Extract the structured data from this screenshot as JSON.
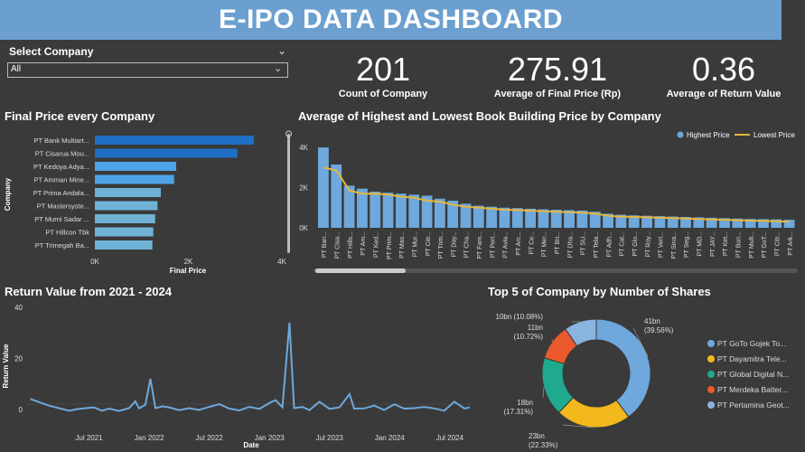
{
  "header": {
    "title": "E-IPO DATA DASHBOARD"
  },
  "slicer": {
    "title": "Select Company",
    "value": "All"
  },
  "kpis": [
    {
      "value": "201",
      "label": "Count of Company"
    },
    {
      "value": "275.91",
      "label": "Average of  Final Price (Rp)"
    },
    {
      "value": "0.36",
      "label": "Average of Return Value"
    }
  ],
  "colors": {
    "title_bar": "#6b9fcf",
    "bar_dark": "#1f6fc4",
    "bar_light": "#4da3e8",
    "highest": "#6ea8dc",
    "lowest": "#e6b63c"
  },
  "chart_data": [
    {
      "id": "final-price",
      "type": "bar",
      "orientation": "horizontal",
      "title": "Final Price every Company",
      "xlabel": "Final Price",
      "ylabel": "Company",
      "xlim": [
        0,
        4000
      ],
      "xticks": [
        "0K",
        "2K",
        "4K"
      ],
      "categories": [
        "PT Bank Multiart...",
        "PT Cisarua Mou...",
        "PT Kedoya Adya...",
        "PT Amman Mine...",
        "PT Prima Andala...",
        "PT Mastersyste...",
        "PT Murni Sadar ...",
        "PT Hillcon Tbk",
        "PT Trimegah Ba..."
      ],
      "values": [
        3400,
        3050,
        1740,
        1695,
        1410,
        1340,
        1290,
        1250,
        1230
      ]
    },
    {
      "id": "book-building",
      "type": "bar",
      "title": "Average of Highest and Lowest Book Building Price by Company",
      "ylim": [
        0,
        4500
      ],
      "yticks": [
        "0K",
        "2K",
        "4K"
      ],
      "categories": [
        "PT Ban...",
        "PT Cisa...",
        "PT Hills...",
        "PT Am...",
        "PT Ked...",
        "PT Prim...",
        "PT Mas...",
        "PT Mur...",
        "PT Citr...",
        "PT Trim...",
        "PT Day...",
        "PT Cha...",
        "PT Fam...",
        "PT Pert...",
        "PT Avia...",
        "PT Arc...",
        "PT Ce...",
        "PT Mer...",
        "PT Bri...",
        "PT Dha...",
        "PT SU...",
        "PT Tela...",
        "PT Adh...",
        "PT Cat...",
        "PT Glo...",
        "PT Roy...",
        "PT Vert...",
        "PT Sina...",
        "PT Seg...",
        "PT MD...",
        "PT JAY...",
        "PT Ket...",
        "PT Bun...",
        "PT Mult...",
        "PT GoT...",
        "PT Citr...",
        "PT Ark..."
      ],
      "series": [
        {
          "name": "Highest Price",
          "values": [
            4000,
            3150,
            2100,
            1950,
            1800,
            1750,
            1700,
            1650,
            1600,
            1450,
            1350,
            1200,
            1100,
            1050,
            1000,
            980,
            950,
            920,
            900,
            880,
            860,
            800,
            700,
            650,
            620,
            600,
            580,
            560,
            540,
            520,
            500,
            480,
            460,
            440,
            430,
            420,
            400
          ]
        },
        {
          "name": "Lowest Price",
          "values": [
            3000,
            2850,
            1850,
            1700,
            1700,
            1650,
            1550,
            1500,
            1350,
            1300,
            1150,
            1050,
            1000,
            950,
            900,
            880,
            850,
            820,
            800,
            780,
            760,
            700,
            600,
            560,
            540,
            520,
            500,
            480,
            460,
            440,
            420,
            400,
            380,
            360,
            340,
            330,
            300
          ]
        }
      ]
    },
    {
      "id": "return-value",
      "type": "line",
      "title": "Return Value from 2021 - 2024",
      "xlabel": "Date",
      "ylabel": "Return Value",
      "ylim": [
        -5,
        40
      ],
      "yticks": [
        "0",
        "20",
        "40"
      ],
      "xticks": [
        "Jul 2021",
        "Jan 2022",
        "Jul 2022",
        "Jan 2023",
        "Jul 2023",
        "Jan 2024",
        "Jul 2024"
      ],
      "x_range": [
        "2021-01",
        "2024-09"
      ],
      "series": [
        {
          "name": "Return Value",
          "points": [
            [
              "2021-01-05",
              4.1
            ],
            [
              "2021-03-01",
              1.5
            ],
            [
              "2021-05-01",
              -0.5
            ],
            [
              "2021-06-01",
              0.2
            ],
            [
              "2021-07-15",
              0.8
            ],
            [
              "2021-08-10",
              -0.5
            ],
            [
              "2021-09-01",
              0.3
            ],
            [
              "2021-10-01",
              -0.6
            ],
            [
              "2021-11-01",
              0.5
            ],
            [
              "2021-11-20",
              3.2
            ],
            [
              "2021-12-01",
              0.4
            ],
            [
              "2021-12-20",
              1.8
            ],
            [
              "2022-01-05",
              12.0
            ],
            [
              "2022-01-20",
              0.5
            ],
            [
              "2022-02-10",
              1.2
            ],
            [
              "2022-03-01",
              0.8
            ],
            [
              "2022-04-01",
              -0.3
            ],
            [
              "2022-05-01",
              0.5
            ],
            [
              "2022-06-01",
              -0.2
            ],
            [
              "2022-07-01",
              1.0
            ],
            [
              "2022-08-01",
              2.1
            ],
            [
              "2022-09-01",
              0.3
            ],
            [
              "2022-10-01",
              -0.4
            ],
            [
              "2022-11-01",
              1.0
            ],
            [
              "2022-12-01",
              0.2
            ],
            [
              "2023-01-05",
              2.8
            ],
            [
              "2023-01-20",
              3.6
            ],
            [
              "2023-02-10",
              0.8
            ],
            [
              "2023-03-01",
              34.0
            ],
            [
              "2023-03-15",
              0.5
            ],
            [
              "2023-04-10",
              1.0
            ],
            [
              "2023-05-01",
              -0.3
            ],
            [
              "2023-06-01",
              3.0
            ],
            [
              "2023-07-01",
              0.2
            ],
            [
              "2023-08-01",
              0.8
            ],
            [
              "2023-09-01",
              6.0
            ],
            [
              "2023-09-15",
              0.3
            ],
            [
              "2023-10-15",
              0.4
            ],
            [
              "2023-11-15",
              1.5
            ],
            [
              "2023-12-15",
              -0.2
            ],
            [
              "2024-01-15",
              2.0
            ],
            [
              "2024-02-15",
              0.3
            ],
            [
              "2024-03-15",
              0.5
            ],
            [
              "2024-04-15",
              1.0
            ],
            [
              "2024-05-15",
              0.4
            ],
            [
              "2024-06-15",
              -0.5
            ],
            [
              "2024-07-15",
              3.0
            ],
            [
              "2024-08-15",
              0.4
            ],
            [
              "2024-09-01",
              0.8
            ]
          ]
        }
      ]
    },
    {
      "id": "top5-shares",
      "type": "pie",
      "donut": true,
      "title": "Top 5 of Company by Number of Shares",
      "legend_position": "right",
      "slices": [
        {
          "name": "PT GoTo Gojek To...",
          "value": 41,
          "label": "41bn",
          "pct": "(39.56%)",
          "color": "#6ea8dc"
        },
        {
          "name": "PT Dayamitra Tele...",
          "value": 23,
          "label": "23bn",
          "pct": "(22.33%)",
          "color": "#f2b81c"
        },
        {
          "name": "PT Global Digital N...",
          "value": 18,
          "label": "18bn",
          "pct": "(17.31%)",
          "color": "#1faa8e"
        },
        {
          "name": "PT Merdeka Batter...",
          "value": 11,
          "label": "11bn",
          "pct": "(10.72%)",
          "color": "#ea5a2c"
        },
        {
          "name": "PT Pertamina Geot...",
          "value": 10,
          "label": "10bn",
          "pct": "(10.08%)",
          "color": "#8ab4e0"
        }
      ]
    }
  ]
}
